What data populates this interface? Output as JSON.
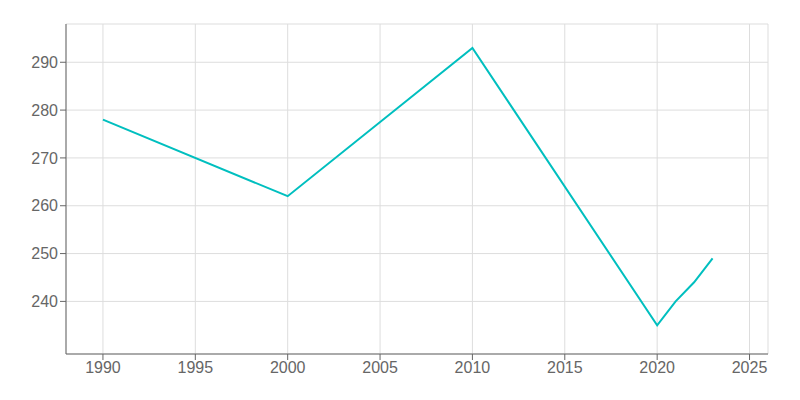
{
  "chart_data": {
    "type": "line",
    "x": [
      1990,
      2000,
      2010,
      2020,
      2021,
      2022,
      2023
    ],
    "values": [
      278,
      262,
      293,
      235,
      240,
      244,
      249
    ],
    "color": "#00BFBF",
    "xlim": [
      1988,
      2026
    ],
    "ylim": [
      229,
      298
    ],
    "xticks": [
      1990,
      1995,
      2000,
      2005,
      2010,
      2015,
      2020,
      2025
    ],
    "yticks": [
      240,
      250,
      260,
      270,
      280,
      290
    ],
    "grid": true
  }
}
